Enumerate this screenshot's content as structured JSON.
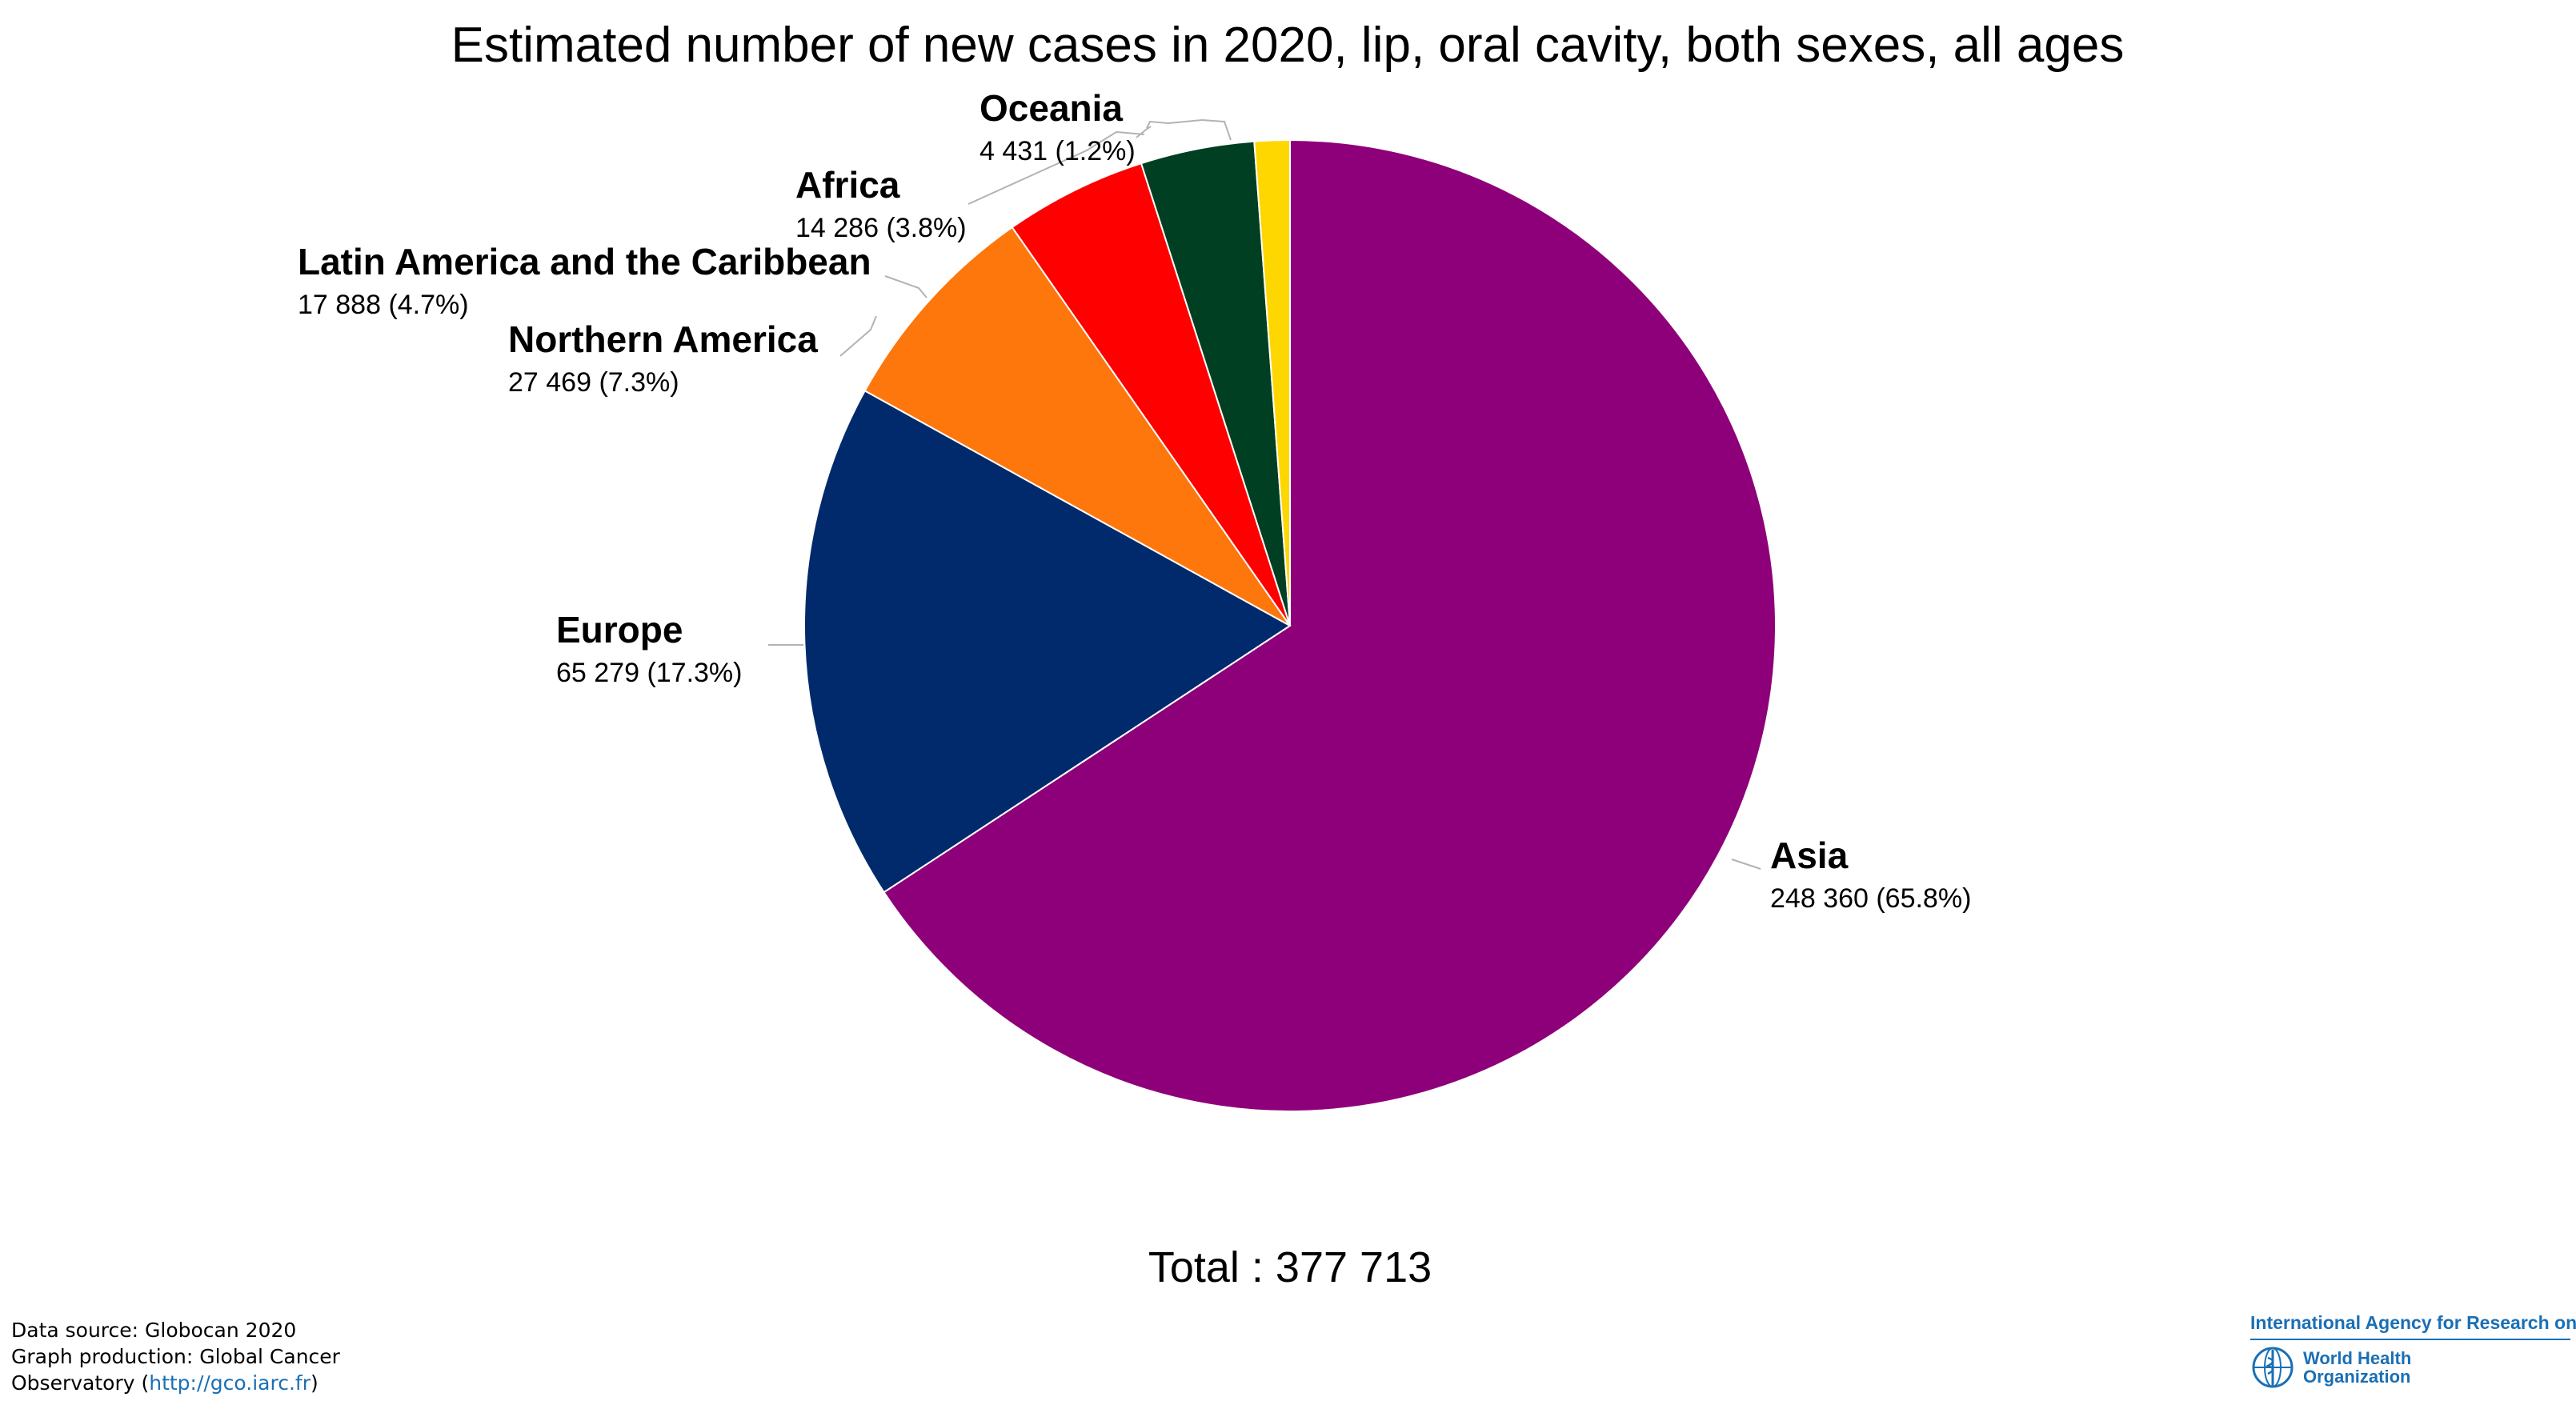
{
  "chart_data": {
    "type": "pie",
    "title": "Estimated number of new cases in 2020, lip, oral cavity, both sexes, all ages",
    "total_label": "Total : 377 713",
    "slices": [
      {
        "name": "Asia",
        "value": 248360,
        "value_label": "248 360 (65.8%)",
        "color": "#8e0079"
      },
      {
        "name": "Europe",
        "value": 65279,
        "value_label": "65 279 (17.3%)",
        "color": "#002a6b"
      },
      {
        "name": "Northern America",
        "value": 27469,
        "value_label": "27 469 (7.3%)",
        "color": "#fd770d"
      },
      {
        "name": "Latin America and the Caribbean",
        "value": 17888,
        "value_label": "17 888 (4.7%)",
        "color": "#fe0000"
      },
      {
        "name": "Africa",
        "value": 14286,
        "value_label": "14 286 (3.8%)",
        "color": "#003f21"
      },
      {
        "name": "Oceania",
        "value": 4431,
        "value_label": "4 431 (1.2%)",
        "color": "#fed700"
      }
    ]
  },
  "footer": {
    "line1": "Data source: Globocan 2020",
    "line2": "Graph production: Global Cancer",
    "line3_prefix": "Observatory (",
    "link": "http://gco.iarc.fr",
    "line3_suffix": ")"
  },
  "logo": {
    "iarc": "International Agency for Research on Cancer",
    "who_line1": "World Health",
    "who_line2": "Organization"
  }
}
